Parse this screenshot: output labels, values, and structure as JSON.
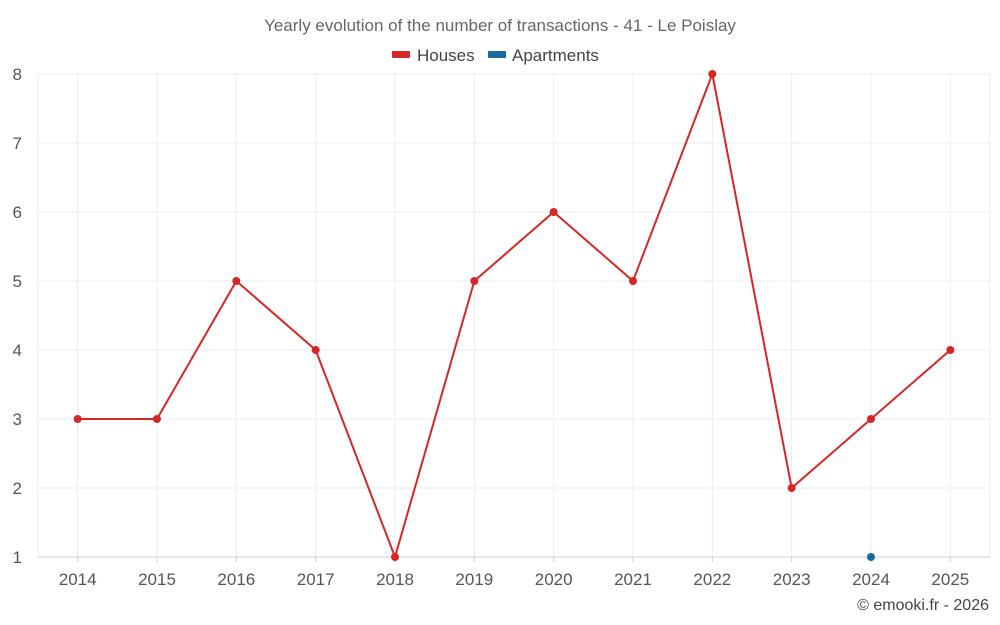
{
  "chart_data": {
    "type": "line",
    "title": "Yearly evolution of the number of transactions - 41 - Le Poislay",
    "x": [
      "2014",
      "2015",
      "2016",
      "2017",
      "2018",
      "2019",
      "2020",
      "2021",
      "2022",
      "2023",
      "2024",
      "2025"
    ],
    "series": [
      {
        "name": "Houses",
        "color": "#d62728",
        "values": [
          3,
          3,
          5,
          4,
          1,
          5,
          6,
          5,
          8,
          2,
          3,
          4
        ]
      },
      {
        "name": "Apartments",
        "color": "#1a6aa0",
        "values": [
          null,
          null,
          null,
          null,
          null,
          null,
          null,
          null,
          null,
          null,
          1,
          null
        ]
      }
    ],
    "ylim": [
      1,
      8
    ],
    "yticks": [
      "1",
      "2",
      "3",
      "4",
      "5",
      "6",
      "7",
      "8"
    ],
    "xlabel": "",
    "ylabel": "",
    "grid": true,
    "legend": "top-center"
  },
  "credit": "© emooki.fr - 2026"
}
